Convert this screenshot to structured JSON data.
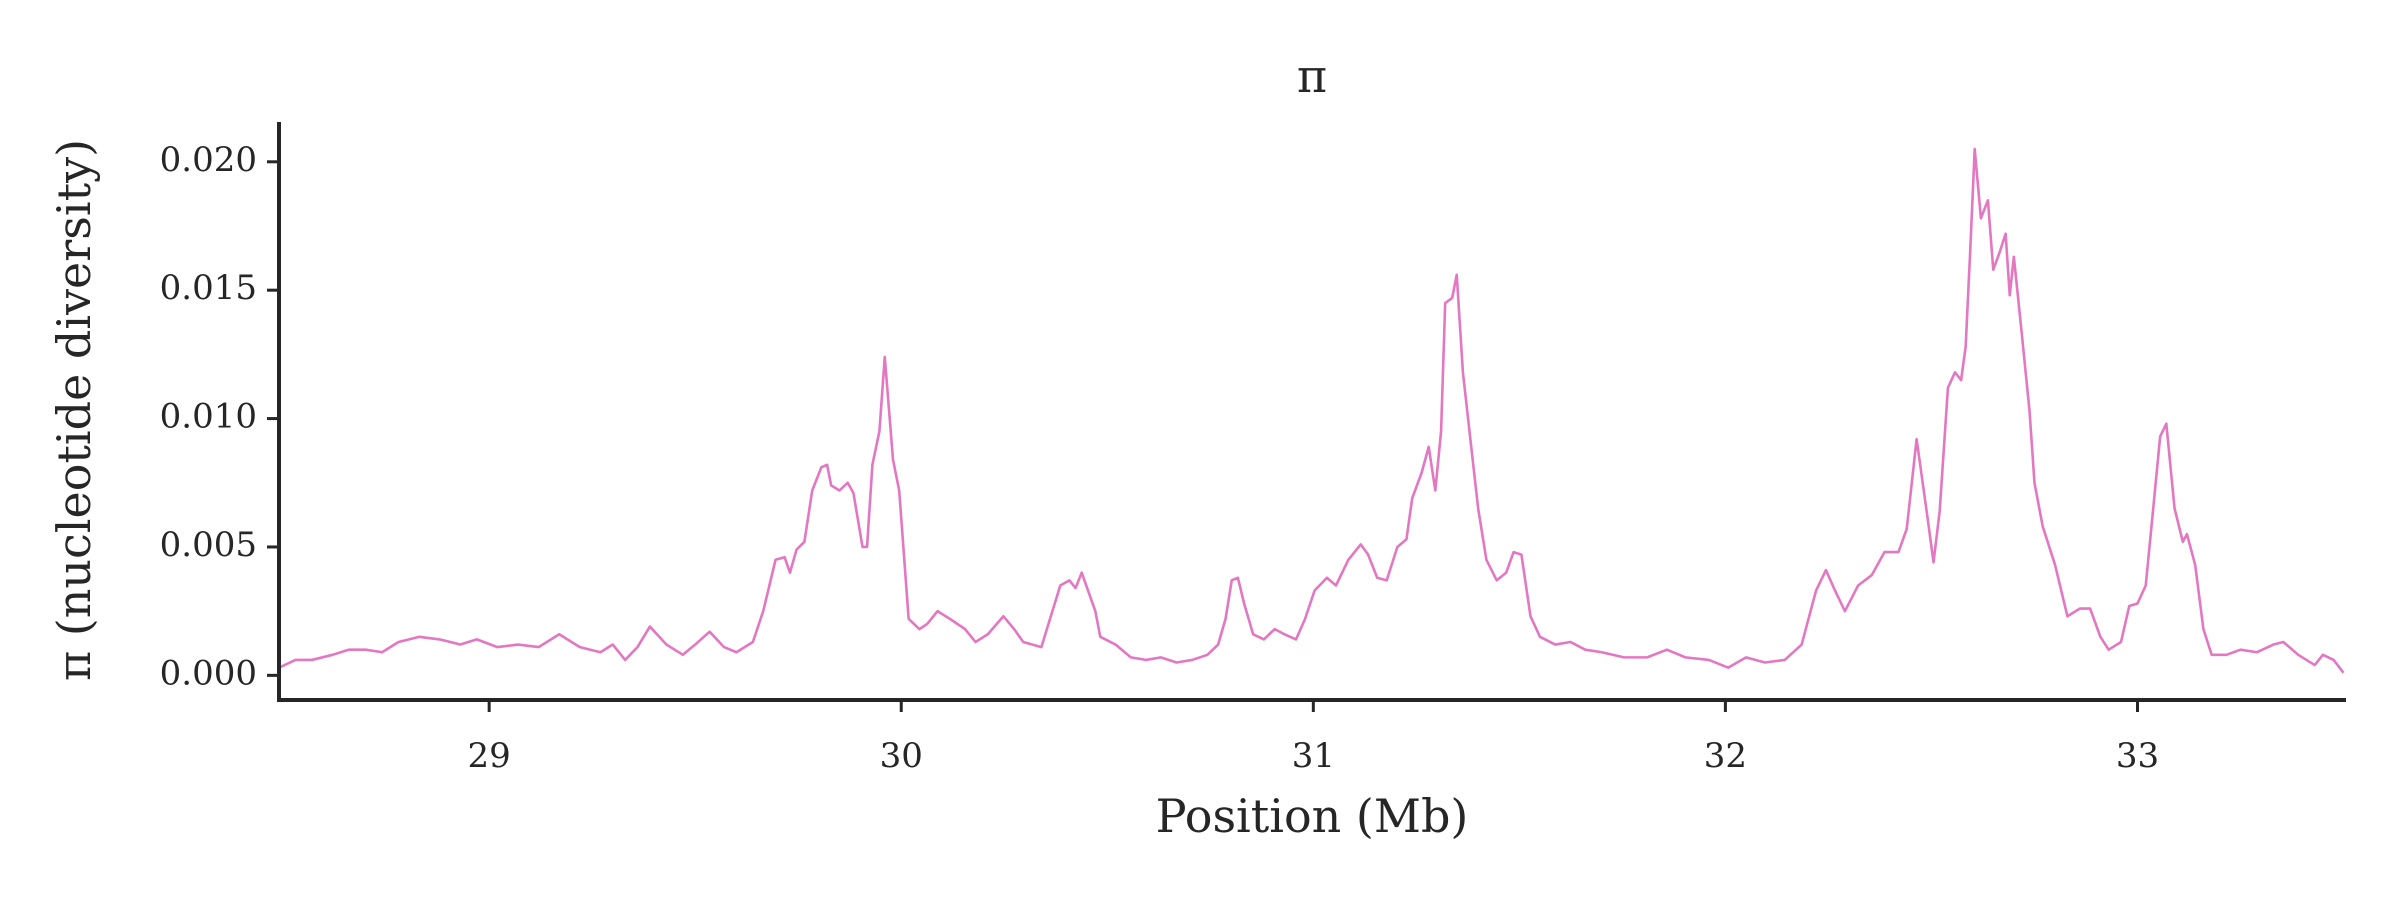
{
  "chart_data": {
    "type": "line",
    "title": "π",
    "xlabel": "Position (Mb)",
    "ylabel": "π (nucleotide diversity)",
    "color": "#e377c2",
    "xlim": [
      28.49,
      33.506
    ],
    "ylim": [
      -0.00096,
      0.02155
    ],
    "xticks": [
      29,
      30,
      31,
      32,
      33
    ],
    "yticks": [
      {
        "value": 0,
        "label": "0.000"
      },
      0.005,
      {
        "value": 0.01,
        "label": "0.010"
      },
      0.015,
      {
        "value": 0.02,
        "label": "0.020"
      }
    ],
    "x": [
      28.49,
      28.53,
      28.57,
      28.62,
      28.66,
      28.7,
      28.74,
      28.78,
      28.83,
      28.88,
      28.93,
      28.97,
      29.02,
      29.07,
      29.12,
      29.17,
      29.22,
      29.27,
      29.3,
      29.33,
      29.36,
      29.39,
      29.43,
      29.47,
      29.5,
      29.535,
      29.57,
      29.6,
      29.64,
      29.665,
      29.695,
      29.717,
      29.73,
      29.746,
      29.765,
      29.784,
      29.806,
      29.82,
      29.83,
      29.85,
      29.87,
      29.884,
      29.906,
      29.917,
      29.93,
      29.947,
      29.96,
      29.98,
      29.995,
      30.018,
      30.044,
      30.063,
      30.088,
      30.118,
      30.155,
      30.18,
      30.21,
      30.248,
      30.274,
      30.296,
      30.34,
      30.386,
      30.408,
      30.423,
      30.438,
      30.471,
      30.483,
      30.52,
      30.557,
      30.594,
      30.63,
      30.668,
      30.706,
      30.743,
      30.769,
      30.787,
      30.802,
      30.817,
      30.832,
      30.854,
      30.88,
      30.906,
      30.93,
      30.958,
      30.98,
      31.003,
      31.033,
      31.055,
      31.085,
      31.115,
      31.133,
      31.155,
      31.178,
      31.204,
      31.226,
      31.24,
      31.263,
      31.28,
      31.296,
      31.31,
      31.32,
      31.337,
      31.348,
      31.363,
      31.386,
      31.4,
      31.42,
      31.445,
      31.468,
      31.486,
      31.505,
      31.527,
      31.55,
      31.587,
      31.624,
      31.66,
      31.7,
      31.754,
      31.81,
      31.858,
      31.903,
      31.96,
      32.007,
      32.05,
      32.096,
      32.144,
      32.185,
      32.22,
      32.244,
      32.266,
      32.29,
      32.322,
      32.355,
      32.386,
      32.42,
      32.44,
      32.464,
      32.49,
      32.505,
      32.52,
      32.54,
      32.557,
      32.572,
      32.583,
      32.594,
      32.605,
      32.62,
      32.637,
      32.65,
      32.666,
      32.68,
      32.69,
      32.7,
      32.718,
      32.738,
      32.75,
      32.77,
      32.8,
      32.83,
      32.86,
      32.885,
      32.91,
      32.93,
      32.96,
      32.98,
      33.0,
      33.02,
      33.04,
      33.055,
      33.07,
      33.09,
      33.11,
      33.12,
      33.14,
      33.16,
      33.18,
      33.216,
      33.25,
      33.29,
      33.33,
      33.354,
      33.39,
      33.43,
      33.45,
      33.476,
      33.5
    ],
    "values": [
      0.0003,
      0.0006,
      0.0006,
      0.0008,
      0.001,
      0.001,
      0.0009,
      0.0013,
      0.0015,
      0.0014,
      0.0012,
      0.0014,
      0.0011,
      0.0012,
      0.0011,
      0.0016,
      0.0011,
      0.0009,
      0.0012,
      0.0006,
      0.0011,
      0.0019,
      0.0012,
      0.0008,
      0.0012,
      0.0017,
      0.0011,
      0.0009,
      0.0013,
      0.0025,
      0.0045,
      0.0046,
      0.004,
      0.0049,
      0.0052,
      0.0072,
      0.0081,
      0.0082,
      0.0074,
      0.0072,
      0.0075,
      0.0071,
      0.005,
      0.005,
      0.0082,
      0.0095,
      0.0124,
      0.0084,
      0.0072,
      0.0022,
      0.0018,
      0.002,
      0.0025,
      0.0022,
      0.0018,
      0.0013,
      0.0016,
      0.0023,
      0.0018,
      0.0013,
      0.0011,
      0.0035,
      0.0037,
      0.0034,
      0.004,
      0.0025,
      0.0015,
      0.0012,
      0.0007,
      0.0006,
      0.0007,
      0.0005,
      0.0006,
      0.0008,
      0.0012,
      0.0022,
      0.0037,
      0.0038,
      0.0028,
      0.0016,
      0.0014,
      0.0018,
      0.0016,
      0.0014,
      0.0022,
      0.0033,
      0.0038,
      0.0035,
      0.0045,
      0.0051,
      0.0047,
      0.0038,
      0.0037,
      0.005,
      0.0053,
      0.0069,
      0.0079,
      0.0089,
      0.0072,
      0.0095,
      0.0145,
      0.0147,
      0.0156,
      0.0118,
      0.0085,
      0.0065,
      0.0045,
      0.0037,
      0.004,
      0.0048,
      0.0047,
      0.0023,
      0.0015,
      0.0012,
      0.0013,
      0.001,
      0.0009,
      0.0007,
      0.0007,
      0.001,
      0.0007,
      0.0006,
      0.0003,
      0.0007,
      0.0005,
      0.0006,
      0.0012,
      0.0033,
      0.0041,
      0.0033,
      0.0025,
      0.0035,
      0.0039,
      0.0048,
      0.0048,
      0.0057,
      0.0092,
      0.0062,
      0.0044,
      0.0064,
      0.0112,
      0.0118,
      0.0115,
      0.0128,
      0.0165,
      0.0205,
      0.0178,
      0.0185,
      0.0158,
      0.0165,
      0.0172,
      0.0148,
      0.0163,
      0.0135,
      0.0103,
      0.0075,
      0.0058,
      0.0043,
      0.0023,
      0.0026,
      0.0026,
      0.0015,
      0.001,
      0.0013,
      0.0027,
      0.0028,
      0.0035,
      0.0068,
      0.0093,
      0.0098,
      0.0065,
      0.0052,
      0.0055,
      0.0043,
      0.0018,
      0.0008,
      0.0008,
      0.001,
      0.0009,
      0.0012,
      0.0013,
      0.0008,
      0.0004,
      0.0008,
      0.0006,
      0.0001
    ]
  }
}
